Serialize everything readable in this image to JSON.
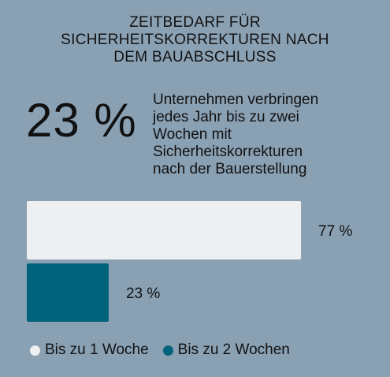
{
  "title_lines": [
    "ZEITBEDARF FÜR",
    "SICHERHEITSKORREKTUREN NACH",
    "DEM BAUABSCHLUSS"
  ],
  "big_stat": "23 %",
  "stat_text_lines": [
    "Unternehmen verbringen",
    "jedes Jahr bis zu zwei",
    "Wochen mit",
    "Sicherheitskorrekturen",
    "nach der Bauerstellung"
  ],
  "colors": {
    "background": "#8aa1b4",
    "series_1": "#eeeff1",
    "series_2": "#00637b"
  },
  "chart_data": {
    "type": "bar",
    "orientation": "horizontal",
    "categories": [
      "Bis zu 1 Woche",
      "Bis zu 2 Wochen"
    ],
    "values": [
      77,
      23
    ],
    "value_labels": [
      "77 %",
      "23 %"
    ],
    "xlim": [
      0,
      100
    ],
    "legend": {
      "placement": "bottom",
      "entries": [
        "Bis zu 1 Woche",
        "Bis zu 2 Wochen"
      ]
    }
  }
}
